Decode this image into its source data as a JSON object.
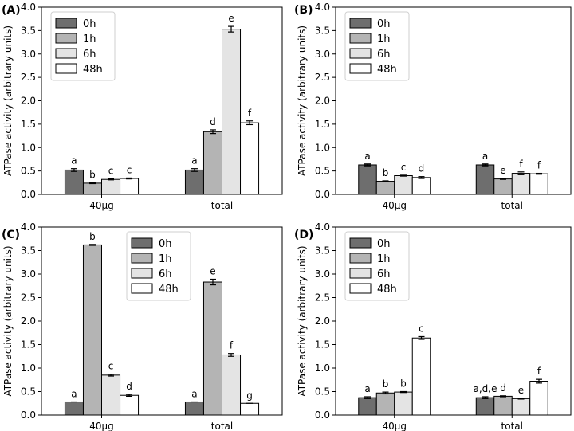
{
  "figure": {
    "ylabel": "ATPase activity (arbitrary units)",
    "legend_labels": [
      "0h",
      "1h",
      "6h",
      "48h"
    ],
    "colors": {
      "0h": "#6e6e6e",
      "1h": "#b4b4b4",
      "6h": "#e4e4e4",
      "48h": "#ffffff",
      "edge": "#000000"
    }
  },
  "chart_data": [
    {
      "panel": "(A)",
      "type": "bar",
      "categories": [
        "40µg",
        "total"
      ],
      "ylabel": "ATPase activity (arbitrary units)",
      "ylim": [
        0,
        4.0
      ],
      "yticks": [
        "0.0",
        "0.5",
        "1.0",
        "1.5",
        "2.0",
        "2.5",
        "3.0",
        "3.5",
        "4.0"
      ],
      "legend": "top-left",
      "series": [
        {
          "name": "0h",
          "values": [
            0.52,
            0.52
          ],
          "errors": [
            0.03,
            0.03
          ],
          "labels": [
            "a",
            "a"
          ]
        },
        {
          "name": "1h",
          "values": [
            0.24,
            1.34
          ],
          "errors": [
            0.01,
            0.04
          ],
          "labels": [
            "b",
            "d"
          ]
        },
        {
          "name": "6h",
          "values": [
            0.32,
            3.53
          ],
          "errors": [
            0.01,
            0.06
          ],
          "labels": [
            "c",
            "e"
          ]
        },
        {
          "name": "48h",
          "values": [
            0.34,
            1.53
          ],
          "errors": [
            0.01,
            0.04
          ],
          "labels": [
            "c",
            "f"
          ]
        }
      ]
    },
    {
      "panel": "(B)",
      "type": "bar",
      "categories": [
        "40µg",
        "total"
      ],
      "ylabel": "ATPase activity (arbitrary units)",
      "ylim": [
        0,
        4.0
      ],
      "yticks": [
        "0.0",
        "0.5",
        "1.0",
        "1.5",
        "2.0",
        "2.5",
        "3.0",
        "3.5",
        "4.0"
      ],
      "legend": "top-left",
      "series": [
        {
          "name": "0h",
          "values": [
            0.63,
            0.63
          ],
          "errors": [
            0.02,
            0.02
          ],
          "labels": [
            "a",
            "a"
          ]
        },
        {
          "name": "1h",
          "values": [
            0.28,
            0.33
          ],
          "errors": [
            0.01,
            0.01
          ],
          "labels": [
            "b",
            "e"
          ]
        },
        {
          "name": "6h",
          "values": [
            0.4,
            0.45
          ],
          "errors": [
            0.01,
            0.03
          ],
          "labels": [
            "c",
            "f"
          ]
        },
        {
          "name": "48h",
          "values": [
            0.36,
            0.44
          ],
          "errors": [
            0.02,
            0.01
          ],
          "labels": [
            "d",
            "f"
          ]
        }
      ]
    },
    {
      "panel": "(C)",
      "type": "bar",
      "categories": [
        "40µg",
        "total"
      ],
      "ylabel": "ATPase activity (arbitrary units)",
      "ylim": [
        0,
        4.0
      ],
      "yticks": [
        "0.0",
        "0.5",
        "1.0",
        "1.5",
        "2.0",
        "2.5",
        "3.0",
        "3.5",
        "4.0"
      ],
      "legend": "top-center",
      "series": [
        {
          "name": "0h",
          "values": [
            0.28,
            0.28
          ],
          "errors": [
            0.0,
            0.0
          ],
          "labels": [
            "a",
            "a"
          ]
        },
        {
          "name": "1h",
          "values": [
            3.62,
            2.83
          ],
          "errors": [
            0.01,
            0.06
          ],
          "labels": [
            "b",
            "e"
          ]
        },
        {
          "name": "6h",
          "values": [
            0.85,
            1.28
          ],
          "errors": [
            0.02,
            0.03
          ],
          "labels": [
            "c",
            "f"
          ]
        },
        {
          "name": "48h",
          "values": [
            0.42,
            0.25
          ],
          "errors": [
            0.02,
            0.0
          ],
          "labels": [
            "d",
            "g"
          ]
        }
      ]
    },
    {
      "panel": "(D)",
      "type": "bar",
      "categories": [
        "40µg",
        "total"
      ],
      "ylabel": "ATPase activity (arbitrary units)",
      "ylim": [
        0,
        4.0
      ],
      "yticks": [
        "0.0",
        "0.5",
        "1.0",
        "1.5",
        "2.0",
        "2.5",
        "3.0",
        "3.5",
        "4.0"
      ],
      "legend": "top-left",
      "series": [
        {
          "name": "0h",
          "values": [
            0.37,
            0.37
          ],
          "errors": [
            0.02,
            0.02
          ],
          "labels": [
            "a",
            "a,d,e"
          ]
        },
        {
          "name": "1h",
          "values": [
            0.47,
            0.4
          ],
          "errors": [
            0.02,
            0.01
          ],
          "labels": [
            "b",
            "d"
          ]
        },
        {
          "name": "6h",
          "values": [
            0.49,
            0.35
          ],
          "errors": [
            0.01,
            0.01
          ],
          "labels": [
            "b",
            "e"
          ]
        },
        {
          "name": "48h",
          "values": [
            1.64,
            0.72
          ],
          "errors": [
            0.03,
            0.04
          ],
          "labels": [
            "c",
            "f"
          ]
        }
      ]
    }
  ]
}
